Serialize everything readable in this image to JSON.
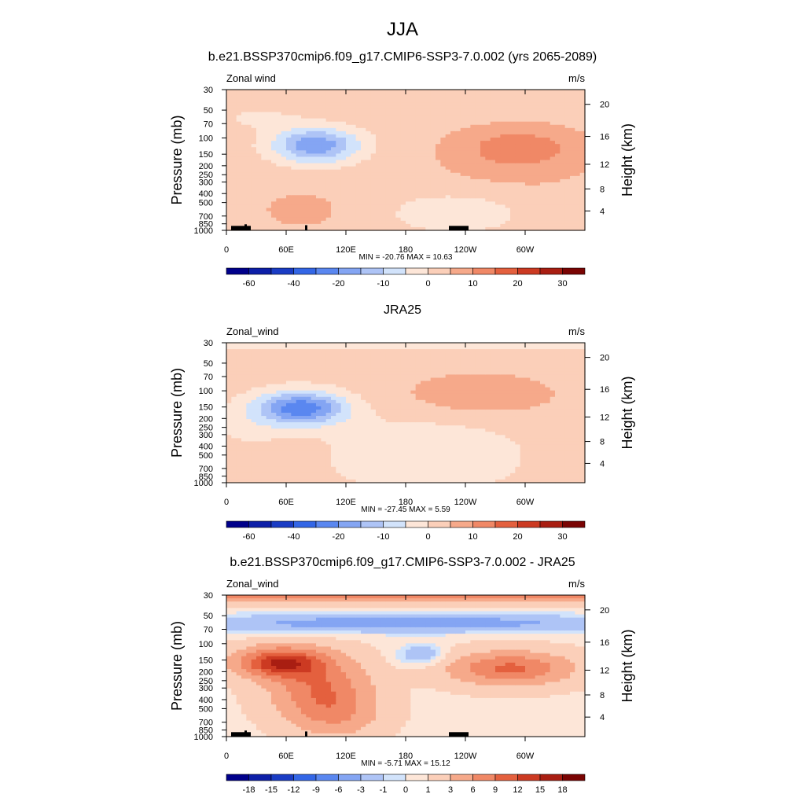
{
  "figure": {
    "title": "JJA"
  },
  "palette": {
    "colors": [
      "#00008b",
      "#0d1fa8",
      "#1a3cc4",
      "#3366e6",
      "#5a87f0",
      "#84a5f3",
      "#aec4f6",
      "#d2e3fb",
      "#fde6d8",
      "#fbcfb9",
      "#f6a98a",
      "#f08866",
      "#e4603e",
      "#cc3a22",
      "#a91e12",
      "#7a0403"
    ]
  },
  "chart_data": [
    {
      "type": "heatmap",
      "title": "b.e21.BSSP370cmip6.f09_g17.CMIP6-SSP3-7.0.002 (yrs 2065-2089)",
      "left_label": "Zonal wind",
      "units": "m/s",
      "ylabel": "Pressure (mb)",
      "ylabel_right": "Height (km)",
      "x_ticks": [
        "0",
        "60E",
        "120E",
        "180",
        "120W",
        "60W"
      ],
      "y_ticks": [
        "30",
        "50",
        "70",
        "100",
        "150",
        "200",
        "250",
        "300",
        "400",
        "500",
        "700",
        "850",
        "1000"
      ],
      "y_right_ticks": [
        "20",
        "16",
        "12",
        "8",
        "4"
      ],
      "stats": "MIN = -20.76  MAX =  10.63",
      "levels": [
        -70,
        -60,
        -50,
        -40,
        -30,
        -20,
        -15,
        -10,
        -5,
        0,
        5,
        10,
        15,
        20,
        25,
        30,
        35
      ],
      "colorbar_labels": [
        "-60",
        "-40",
        "-20",
        "-10",
        "0",
        "10",
        "20",
        "30"
      ],
      "min": -20.76,
      "max": 10.63
    },
    {
      "type": "heatmap",
      "title": "JRA25",
      "left_label": "Zonal_wind",
      "units": "m/s",
      "ylabel": "Pressure (mb)",
      "ylabel_right": "Height (km)",
      "x_ticks": [
        "0",
        "60E",
        "120E",
        "180",
        "120W",
        "60W"
      ],
      "y_ticks": [
        "30",
        "50",
        "70",
        "100",
        "150",
        "200",
        "250",
        "300",
        "400",
        "500",
        "700",
        "850",
        "1000"
      ],
      "y_right_ticks": [
        "20",
        "16",
        "12",
        "8",
        "4"
      ],
      "stats": "MIN = -27.45  MAX =   5.59",
      "levels": [
        -70,
        -60,
        -50,
        -40,
        -30,
        -20,
        -15,
        -10,
        -5,
        0,
        5,
        10,
        15,
        20,
        25,
        30,
        35
      ],
      "colorbar_labels": [
        "-60",
        "-40",
        "-20",
        "-10",
        "0",
        "10",
        "20",
        "30"
      ],
      "min": -27.45,
      "max": 5.59
    },
    {
      "type": "heatmap",
      "title": "b.e21.BSSP370cmip6.f09_g17.CMIP6-SSP3-7.0.002 - JRA25",
      "left_label": "Zonal_wind",
      "units": "m/s",
      "ylabel": "Pressure (mb)",
      "ylabel_right": "Height (km)",
      "x_ticks": [
        "0",
        "60E",
        "120E",
        "180",
        "120W",
        "60W"
      ],
      "y_ticks": [
        "30",
        "50",
        "70",
        "100",
        "150",
        "200",
        "250",
        "300",
        "400",
        "500",
        "700",
        "850",
        "1000"
      ],
      "y_right_ticks": [
        "20",
        "16",
        "12",
        "8",
        "4"
      ],
      "stats": "MIN =  -5.71  MAX =  15.12",
      "levels": [
        -21,
        -18,
        -15,
        -12,
        -9,
        -6,
        -3,
        -1,
        0,
        1,
        3,
        6,
        9,
        12,
        15,
        18,
        21
      ],
      "colorbar_labels": [
        "-18",
        "-15",
        "-12",
        "-9",
        "-6",
        "-3",
        "-1",
        "0",
        "1",
        "3",
        "6",
        "9",
        "12",
        "15",
        "18"
      ],
      "min": -5.71,
      "max": 15.12
    }
  ]
}
